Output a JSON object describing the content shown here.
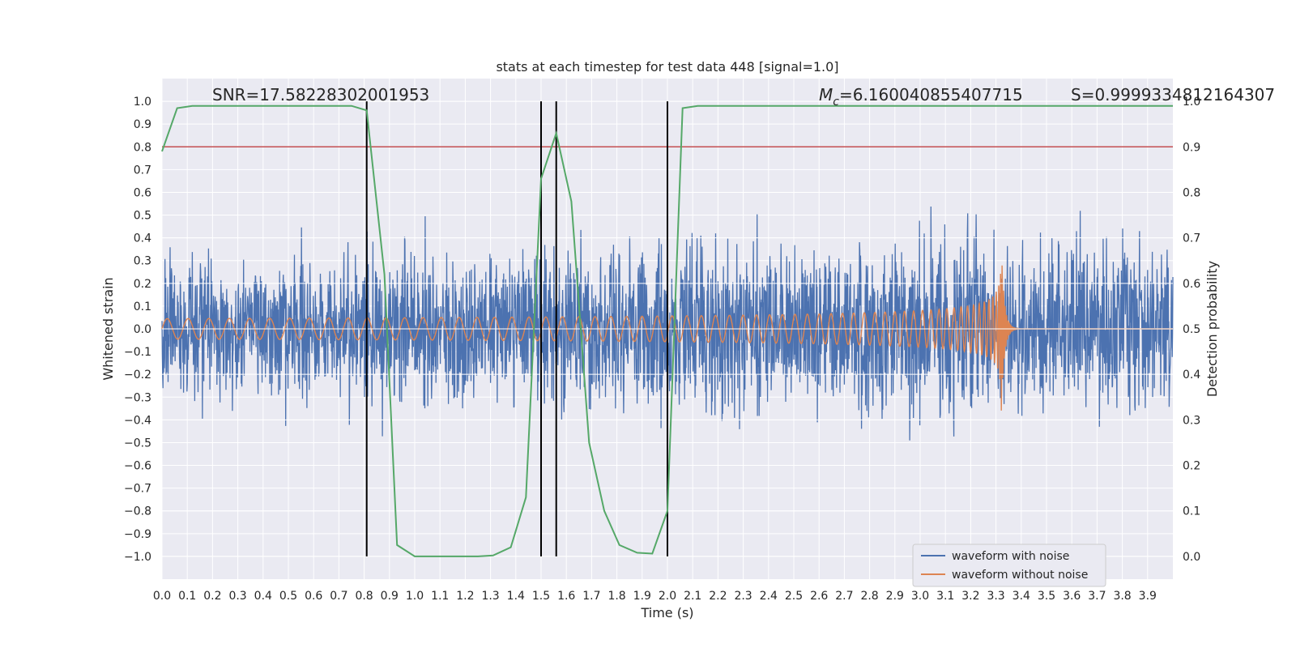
{
  "chart_data": {
    "type": "line",
    "title": "stats at each timestep for test data 448 [signal=1.0]",
    "xlabel": "Time (s)",
    "ylabel": "Whitened strain",
    "y2label": "Detection probability",
    "xlim": [
      0.0,
      4.0
    ],
    "ylim": [
      -1.1,
      1.1
    ],
    "y2lim": [
      -0.05,
      1.05
    ],
    "grid": true,
    "x_ticks": [
      "0.0",
      "0.1",
      "0.2",
      "0.3",
      "0.4",
      "0.5",
      "0.6",
      "0.7",
      "0.8",
      "0.9",
      "1.0",
      "1.1",
      "1.2",
      "1.3",
      "1.4",
      "1.5",
      "1.6",
      "1.7",
      "1.8",
      "1.9",
      "2.0",
      "2.1",
      "2.2",
      "2.3",
      "2.4",
      "2.5",
      "2.6",
      "2.7",
      "2.8",
      "2.9",
      "3.0",
      "3.1",
      "3.2",
      "3.3",
      "3.4",
      "3.5",
      "3.6",
      "3.7",
      "3.8",
      "3.9"
    ],
    "y_ticks": [
      "1.0",
      "0.9",
      "0.8",
      "0.7",
      "0.6",
      "0.5",
      "0.4",
      "0.3",
      "0.2",
      "0.1",
      "0.0",
      "−0.1",
      "−0.2",
      "−0.3",
      "−0.4",
      "−0.5",
      "−0.6",
      "−0.7",
      "−0.8",
      "−0.9",
      "−1.0"
    ],
    "y2_ticks": [
      "1.0",
      "0.9",
      "0.8",
      "0.7",
      "0.6",
      "0.5",
      "0.4",
      "0.3",
      "0.2",
      "0.1",
      "0.0"
    ],
    "annotations": {
      "snr": "SNR=17.58228302001953",
      "mc_symbol": "M",
      "mc_subscript": "c",
      "mc_value": "=6.160040855407715",
      "s": "S=0.9999334812164307"
    },
    "series": [
      {
        "name": "waveform with noise",
        "axis": "left",
        "color": "#4c72b0",
        "kind": "noise",
        "amplitude_envelope": [
          [
            0.0,
            0.55
          ],
          [
            2.6,
            0.7
          ],
          [
            3.9,
            0.7
          ]
        ]
      },
      {
        "name": "waveform without noise",
        "axis": "left",
        "color": "#dd8452",
        "kind": "chirp",
        "start_amplitude": 0.045,
        "peak_amplitude": 0.42,
        "merger_time": 3.32,
        "start_freq_hz": 12
      }
    ],
    "probability": {
      "axis": "right",
      "color": "#55a868",
      "x": [
        0.0,
        0.06,
        0.12,
        0.75,
        0.81,
        0.88,
        0.93,
        1.0,
        1.12,
        1.25,
        1.31,
        1.38,
        1.44,
        1.5,
        1.56,
        1.62,
        1.69,
        1.75,
        1.81,
        1.88,
        1.94,
        2.0,
        2.06,
        2.12,
        4.0
      ],
      "y": [
        0.89,
        0.985,
        0.99,
        0.99,
        0.98,
        0.62,
        0.025,
        0.0,
        0.0,
        0.0,
        0.002,
        0.02,
        0.13,
        0.83,
        0.93,
        0.78,
        0.25,
        0.1,
        0.025,
        0.008,
        0.006,
        0.1,
        0.985,
        0.99,
        0.99
      ]
    },
    "threshold": {
      "axis": "right",
      "value": 0.9,
      "color": "#c44e52"
    },
    "detection_markers_x": [
      0.81,
      1.5,
      1.56,
      2.0
    ],
    "legend": {
      "placement": "lower-right",
      "items": [
        {
          "label": "waveform with noise",
          "color": "#4c72b0"
        },
        {
          "label": "waveform without noise",
          "color": "#dd8452"
        }
      ]
    },
    "style": {
      "axes_bg": "#eaeaf2",
      "grid_color": "#ffffff"
    }
  }
}
